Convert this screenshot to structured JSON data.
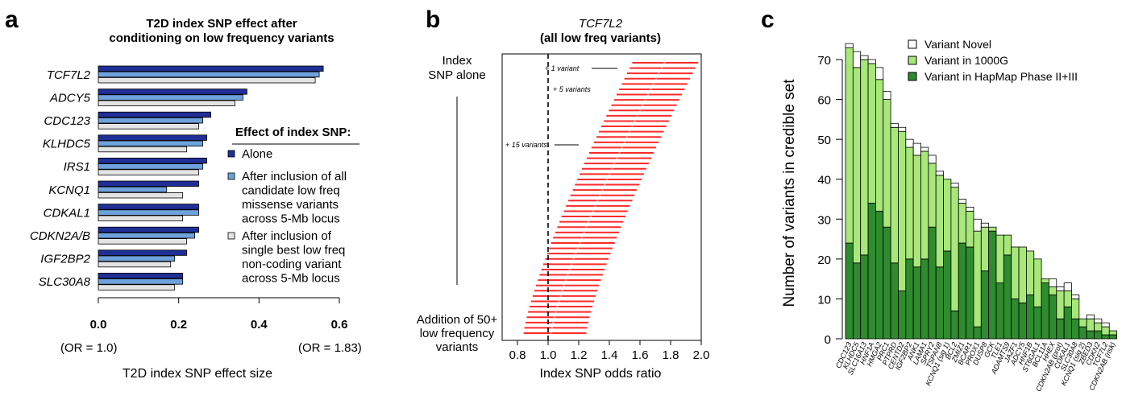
{
  "panels": {
    "a": {
      "label": "a",
      "title_lines": [
        "T2D index SNP effect after",
        "conditioning on low frequency variants"
      ],
      "legend_title": "Effect of index SNP:",
      "legend_items": [
        {
          "lines": [
            "Alone"
          ],
          "color": "#1f2f96"
        },
        {
          "lines": [
            "After inclusion of all",
            "candidate low freq",
            "missense variants",
            "across 5-Mb locus"
          ],
          "color": "#6ea2dc"
        },
        {
          "lines": [
            "After inclusion of",
            "single best low freq",
            "non-coding variant",
            "across 5-Mb locus"
          ],
          "color": "#e3e3e3"
        }
      ],
      "xlabel": "T2D index SNP effect size",
      "xticks": [
        "0.0",
        "0.2",
        "0.4",
        "0.6"
      ],
      "or_left": "(OR = 1.0)",
      "or_right": "(OR = 1.83)"
    },
    "b": {
      "label": "b",
      "title_gene": "TCF7L2",
      "title_sub": "(all low freq variants)",
      "ylabel_top": [
        "Index",
        "SNP alone"
      ],
      "ylabel_bottom": [
        "Addition of 50+",
        "low frequency",
        "variants"
      ],
      "annotations": [
        "+ 1 variant",
        "+ 5 variants",
        "+ 15 variants"
      ],
      "xlabel": "Index SNP odds ratio",
      "xticks": [
        "0.8",
        "1.0",
        "1.2",
        "1.4",
        "1.6",
        "1.8",
        "2.0"
      ]
    },
    "c": {
      "label": "c",
      "ylabel": "Number of variants in credible set",
      "yticks": [
        "0",
        "10",
        "20",
        "30",
        "40",
        "50",
        "60",
        "70"
      ],
      "legend": [
        "Variant Novel",
        "Variant in 1000G",
        "Variant in HapMap Phase II+III"
      ]
    }
  },
  "chart_data": [
    {
      "type": "bar",
      "orientation": "horizontal",
      "categories": [
        "TCF7L2",
        "ADCY5",
        "CDC123",
        "KLHDC5",
        "IRS1",
        "KCNQ1",
        "CDKAL1",
        "CDKN2A/B",
        "IGF2BP2",
        "SLC30A8"
      ],
      "series": [
        {
          "name": "Alone",
          "values": [
            0.56,
            0.37,
            0.28,
            0.27,
            0.27,
            0.25,
            0.25,
            0.25,
            0.22,
            0.21
          ],
          "color": "#1f2f96"
        },
        {
          "name": "After inclusion of all candidate low freq missense variants across 5-Mb locus",
          "values": [
            0.55,
            0.36,
            0.26,
            0.26,
            0.26,
            0.17,
            0.25,
            0.24,
            0.19,
            0.21
          ],
          "color": "#6ea2dc"
        },
        {
          "name": "After inclusion of single best low freq non-coding variant across 5-Mb locus",
          "values": [
            0.54,
            0.34,
            0.25,
            0.22,
            0.25,
            0.21,
            0.21,
            0.22,
            0.18,
            0.19
          ],
          "color": "#e3e3e3"
        }
      ],
      "title": "T2D index SNP effect after conditioning on low frequency variants",
      "xlabel": "T2D index SNP effect size",
      "xlim": [
        0.0,
        0.6
      ]
    },
    {
      "type": "scatter",
      "description": "forest plot of odds ratio with CI as variants are added",
      "title": "TCF7L2 (all low freq variants)",
      "xlabel": "Index SNP odds ratio",
      "xlim": [
        0.7,
        2.0
      ],
      "reference_line": 1.0,
      "rows": 52,
      "first": {
        "or": 1.76,
        "lo": 1.55,
        "hi": 1.98
      },
      "last": {
        "or": 1.02,
        "lo": 0.84,
        "hi": 1.25
      },
      "color": "#ff2a2a"
    },
    {
      "type": "bar",
      "stacked": true,
      "categories": [
        "CDC123",
        "KLHDC5",
        "SLC16A13",
        "HNF1A",
        "HMGA2",
        "PRC1",
        "PTPRD",
        "CENTD2",
        "IGF2BP2",
        "ANK1",
        "LAMA1",
        "SPRY2",
        "TSPAN8",
        "KCNQ1 (sig 1)",
        "BCL2",
        "ZMIZ1",
        "BCAR1",
        "PROX1",
        "DUSP8",
        "GCK",
        "TLE1",
        "ADAMTS9",
        "JAZF1",
        "ADCY5",
        "HNF1B",
        "ST6GAL1",
        "BCL11A",
        "HHEX",
        "CDKN2AB (prot)",
        "CDKAL1",
        "SLC30A8",
        "KCNQ1 (sig 2)",
        "ZBED3",
        "CDKN2",
        "TCF7L2",
        "CDKN2AB (risk)"
      ],
      "series": [
        {
          "name": "Variant in HapMap Phase II+III",
          "color": "#2e8b2e",
          "values": [
            24,
            19,
            21,
            34,
            32,
            28,
            19,
            12,
            20,
            18,
            20,
            28,
            18,
            22,
            7,
            24,
            23,
            3,
            17,
            27,
            14,
            21,
            10,
            9,
            11,
            8,
            14,
            11,
            5,
            8,
            5,
            3,
            2,
            2,
            1,
            1
          ]
        },
        {
          "name": "Variant in 1000G",
          "color": "#a8e77a",
          "values": [
            49,
            49,
            49,
            35,
            33,
            32,
            34,
            40,
            28,
            28,
            27,
            16,
            23,
            18,
            31,
            10,
            9,
            24,
            11,
            1,
            12,
            5,
            13,
            14,
            11,
            12,
            1,
            2,
            7,
            4,
            5,
            2,
            3,
            2,
            2,
            1
          ]
        },
        {
          "name": "Variant Novel",
          "color": "#ffffff",
          "values": [
            1,
            4,
            1,
            1,
            3,
            2,
            1,
            1,
            2,
            3,
            1,
            2,
            1,
            0,
            1,
            1,
            1,
            3,
            1,
            0,
            0,
            0,
            0,
            0,
            0,
            0,
            0,
            2,
            1,
            2,
            1,
            0,
            1,
            1,
            1,
            0
          ]
        }
      ],
      "ylabel": "Number of variants in credible set",
      "ylim": [
        0,
        75
      ]
    }
  ]
}
